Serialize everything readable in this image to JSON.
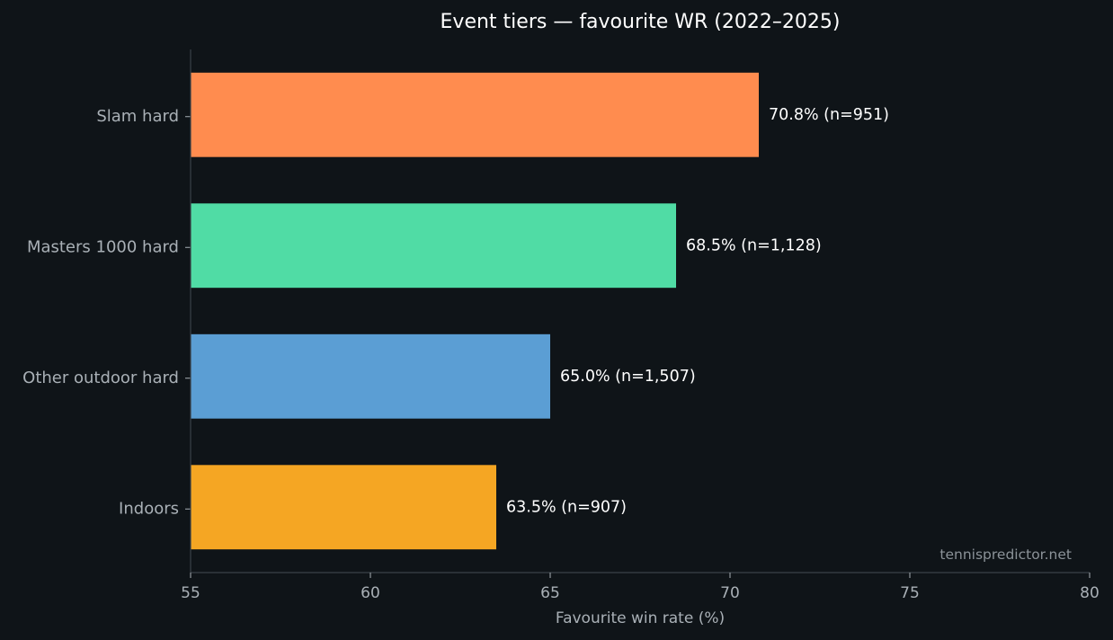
{
  "chart_data": {
    "type": "bar",
    "orientation": "horizontal",
    "title": "Event tiers — favourite WR (2022–2025)",
    "xlabel": "Favourite win rate (%)",
    "ylabel": "",
    "xlim": [
      55,
      80
    ],
    "xticks": [
      55,
      60,
      65,
      70,
      75,
      80
    ],
    "grid": false,
    "categories": [
      "Slam hard",
      "Masters 1000 hard",
      "Other outdoor hard",
      "Indoors"
    ],
    "values": [
      70.8,
      68.5,
      65.0,
      63.5
    ],
    "data_labels": [
      "70.8%  (n=951)",
      "68.5%  (n=1,128)",
      "65.0%  (n=1,507)",
      "63.5%  (n=907)"
    ],
    "colors": [
      "#ff8c4f",
      "#50dca5",
      "#5b9ed4",
      "#f5a623"
    ]
  },
  "watermark": "tennispredictor.net",
  "theme": {
    "background": "#0f1418",
    "axis": "#3a4147"
  }
}
